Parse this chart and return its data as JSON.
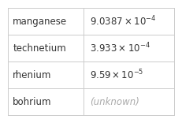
{
  "rows": [
    {
      "element": "manganese",
      "math": "9.0387\\times10^{-4}",
      "value_color": "#333333"
    },
    {
      "element": "technetium",
      "math": "3.933\\times10^{-4}",
      "value_color": "#333333"
    },
    {
      "element": "rhenium",
      "math": "9.59\\times10^{-5}",
      "value_color": "#333333"
    },
    {
      "element": "bohrium",
      "math": null,
      "value": "(unknown)",
      "value_color": "#aaaaaa"
    }
  ],
  "background_color": "#ffffff",
  "border_color": "#cccccc",
  "element_font_size": 8.5,
  "value_font_size": 8.5,
  "col_split": 0.455,
  "element_color": "#333333",
  "unknown_color": "#aaaaaa"
}
